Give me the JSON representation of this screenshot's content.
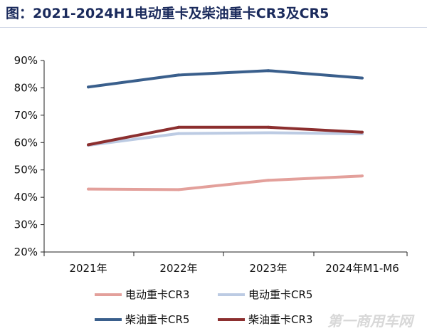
{
  "title": "图：2021-2024H1电动重卡及柴油重卡CR3及CR5",
  "watermark": "第一商用车网",
  "chart_data": {
    "type": "line",
    "title": "",
    "xlabel": "",
    "ylabel": "",
    "categories": [
      "2021年",
      "2022年",
      "2023年",
      "2024年M1-M6"
    ],
    "ylim": [
      20,
      90
    ],
    "yticks": [
      20,
      30,
      40,
      50,
      60,
      70,
      80,
      90
    ],
    "ytick_labels": [
      "20%",
      "30%",
      "40%",
      "50%",
      "60%",
      "70%",
      "80%",
      "90%"
    ],
    "grid": false,
    "legend_position": "bottom",
    "series": [
      {
        "name": "电动重卡CR3",
        "color": "#e3a09b",
        "values": [
          43.0,
          42.8,
          46.2,
          47.8
        ]
      },
      {
        "name": "电动重卡CR5",
        "color": "#bccbe3",
        "values": [
          59.0,
          63.3,
          63.6,
          63.2
        ]
      },
      {
        "name": "柴油重卡CR5",
        "color": "#3a5f8c",
        "values": [
          80.3,
          84.7,
          86.3,
          83.6
        ]
      },
      {
        "name": "柴油重卡CR3",
        "color": "#8c2f2f",
        "values": [
          59.2,
          65.6,
          65.6,
          63.8
        ]
      }
    ]
  }
}
